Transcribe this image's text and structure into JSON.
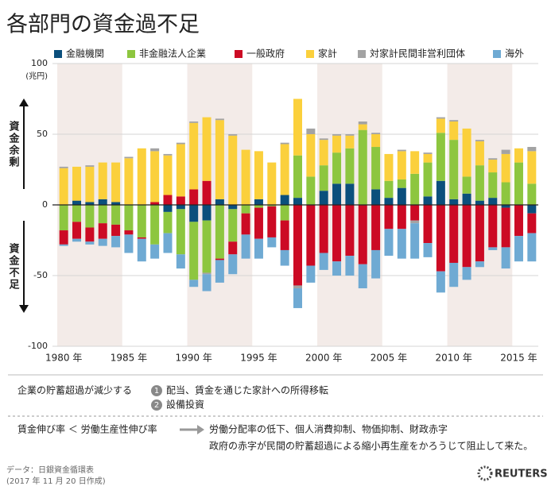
{
  "chart_data": {
    "type": "bar",
    "stacked": true,
    "title": "各部門の資金過不足",
    "y_unit": "(兆円)",
    "surplus_label": "資金余剰",
    "deficit_label": "資金不足",
    "categories": [
      "1980 年",
      null,
      null,
      null,
      null,
      "1985 年",
      null,
      null,
      null,
      null,
      "1990 年",
      null,
      null,
      null,
      null,
      "1995 年",
      null,
      null,
      null,
      null,
      "2000 年",
      null,
      null,
      null,
      null,
      "2005 年",
      null,
      null,
      null,
      null,
      "2010 年",
      null,
      null,
      null,
      null,
      "2015 年",
      null
    ],
    "ylim": [
      -100,
      100
    ],
    "yticks": [
      -100,
      -50,
      0,
      50,
      100
    ],
    "grid": true,
    "series": [
      {
        "name": "金融機関",
        "color": "#0b4f7c",
        "values": [
          0,
          3,
          2,
          4,
          2,
          0,
          0,
          0,
          -5,
          -3,
          -12,
          -11,
          4,
          -3,
          0,
          4,
          0,
          7,
          5,
          0,
          10,
          15,
          15,
          0,
          11,
          5,
          12,
          0,
          6,
          17,
          4,
          8,
          3,
          5,
          -2,
          0,
          -6
        ]
      },
      {
        "name": "非金融法人企業",
        "color": "#8dc63f",
        "values": [
          -18,
          -12,
          -16,
          -13,
          -14,
          -18,
          -23,
          -28,
          -15,
          -32,
          -41,
          -37,
          -38,
          -23,
          -6,
          -2,
          -1,
          -11,
          30,
          20,
          18,
          22,
          25,
          53,
          30,
          12,
          6,
          22,
          24,
          34,
          42,
          12,
          25,
          18,
          16,
          30,
          15
        ]
      },
      {
        "name": "一般政府",
        "color": "#cc0a24",
        "values": [
          -10,
          -12,
          -10,
          -11,
          -8,
          -3,
          -1,
          2,
          7,
          6,
          11,
          17,
          -1,
          -9,
          -15,
          -22,
          -22,
          -21,
          -57,
          -43,
          -34,
          -40,
          -36,
          -42,
          -32,
          -17,
          -17,
          -11,
          -27,
          -47,
          -41,
          -44,
          -40,
          -30,
          -28,
          -22,
          -14
        ]
      },
      {
        "name": "家計",
        "color": "#fbd03c",
        "values": [
          26,
          24,
          25,
          26,
          28,
          33,
          40,
          36,
          28,
          37,
          47,
          45,
          56,
          49,
          39,
          34,
          30,
          36,
          40,
          30,
          18,
          12,
          9,
          4,
          9,
          19,
          20,
          16,
          6,
          10,
          13,
          34,
          17,
          9,
          20,
          10,
          23
        ]
      },
      {
        "name": "対家計民間非営利団体",
        "color": "#a3a3a3",
        "values": [
          1,
          0,
          1,
          0,
          0,
          1,
          0,
          2,
          1,
          1,
          1,
          -1,
          1,
          1,
          0,
          0,
          0,
          1,
          -2,
          4,
          1,
          1,
          1,
          2,
          1,
          0,
          1,
          -2,
          1,
          1,
          1,
          0,
          1,
          1,
          3,
          0,
          3
        ]
      },
      {
        "name": "海外",
        "color": "#6faad3",
        "values": [
          -1,
          -2,
          -2,
          -5,
          -8,
          -13,
          -16,
          -10,
          -14,
          -10,
          -5,
          -12,
          -16,
          -14,
          -17,
          -14,
          -7,
          -11,
          -14,
          -12,
          -12,
          -10,
          -14,
          -17,
          -20,
          -19,
          -21,
          -25,
          -10,
          -15,
          -17,
          -9,
          -4,
          -2,
          -15,
          -18,
          -20
        ]
      }
    ]
  },
  "notes": {
    "cause": "企業の貯蓄超過が減少する",
    "items": [
      {
        "num": "1",
        "text": "配当、賃金を通じた家計への所得移転"
      },
      {
        "num": "2",
        "text": "設備投資"
      }
    ],
    "condition": "賃金伸び率 ＜ 労働生産性伸び率",
    "effect": "労働分配率の低下、個人消費抑制、物価抑制、財政赤字",
    "conclusion": "政府の赤字が民間の貯蓄超過による縮小再生産をかろうじて阻止して来た。"
  },
  "source": "データ：日銀資金循環表",
  "created": "(2017 年 11 月 20 日作成)",
  "logo": "REUTERS"
}
